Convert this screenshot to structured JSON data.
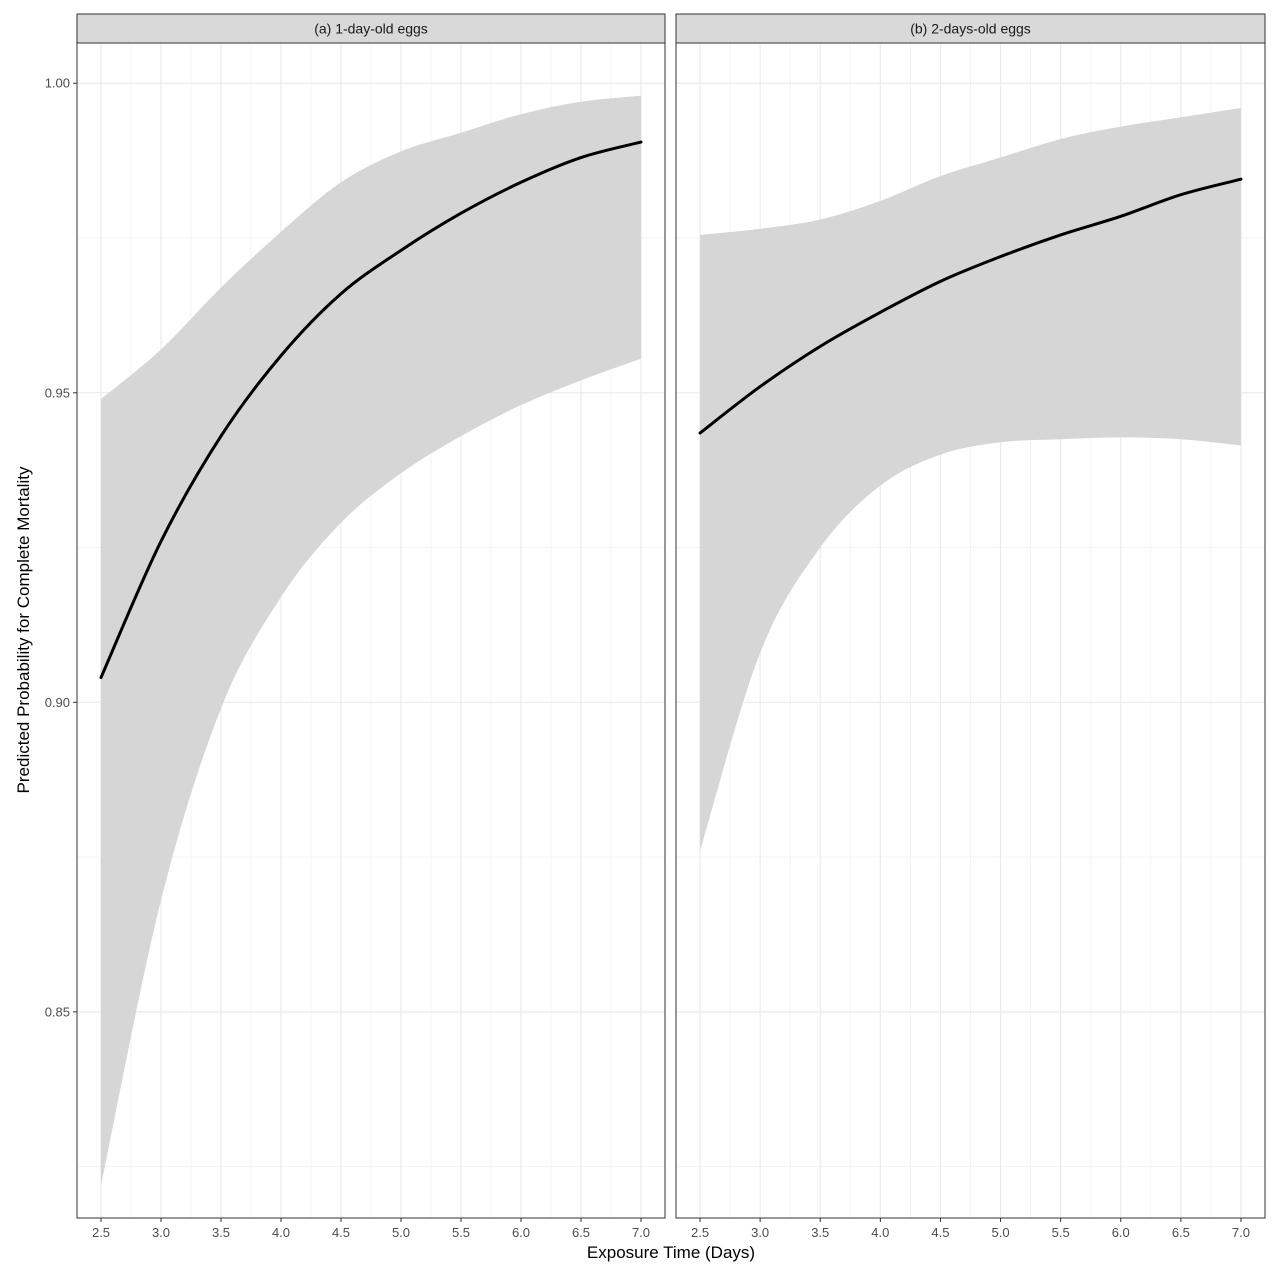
{
  "chart_data": {
    "type": "line",
    "xlabel": "Exposure Time (Days)",
    "ylabel": "Predicted Probability for Complete Mortality",
    "xlim": [
      2.3,
      7.2
    ],
    "ylim": [
      0.8167,
      1.0065
    ],
    "x_ticks": [
      2.5,
      3.0,
      3.5,
      4.0,
      4.5,
      5.0,
      5.5,
      6.0,
      6.5,
      7.0
    ],
    "x_tick_labels": [
      "2.5",
      "3.0",
      "3.5",
      "4.0",
      "4.5",
      "5.0",
      "5.5",
      "6.0",
      "6.5",
      "7.0"
    ],
    "y_ticks": [
      0.85,
      0.9,
      0.95,
      1.0
    ],
    "y_tick_labels": [
      "0.85",
      "0.90",
      "0.95",
      "1.00"
    ],
    "grid": true,
    "colors": {
      "line": "#000000",
      "ribbon": "#d6d6d6",
      "strip_fill": "#d9d9d9",
      "grid_major": "#ebebeb",
      "grid_minor": "#f3f3f3",
      "panel_border": "#333333"
    },
    "panels": [
      {
        "strip_label": "(a) 1-day-old eggs",
        "x": [
          2.5,
          3.0,
          3.5,
          4.0,
          4.5,
          5.0,
          5.5,
          6.0,
          6.5,
          7.0
        ],
        "fit": [
          0.904,
          0.926,
          0.943,
          0.956,
          0.966,
          0.973,
          0.979,
          0.984,
          0.988,
          0.9905
        ],
        "lower": [
          0.822,
          0.868,
          0.899,
          0.917,
          0.929,
          0.937,
          0.943,
          0.948,
          0.952,
          0.9555
        ],
        "upper": [
          0.949,
          0.957,
          0.967,
          0.976,
          0.984,
          0.989,
          0.992,
          0.995,
          0.997,
          0.998
        ]
      },
      {
        "strip_label": "(b) 2-days-old eggs",
        "x": [
          2.5,
          3.0,
          3.5,
          4.0,
          4.5,
          5.0,
          5.5,
          6.0,
          6.5,
          7.0
        ],
        "fit": [
          0.9435,
          0.951,
          0.9575,
          0.963,
          0.968,
          0.972,
          0.9755,
          0.9785,
          0.982,
          0.9845
        ],
        "lower": [
          0.876,
          0.908,
          0.925,
          0.935,
          0.94,
          0.942,
          0.9425,
          0.9428,
          0.9425,
          0.9415
        ],
        "upper": [
          0.9755,
          0.9765,
          0.978,
          0.981,
          0.985,
          0.988,
          0.991,
          0.993,
          0.9945,
          0.996
        ]
      }
    ]
  }
}
